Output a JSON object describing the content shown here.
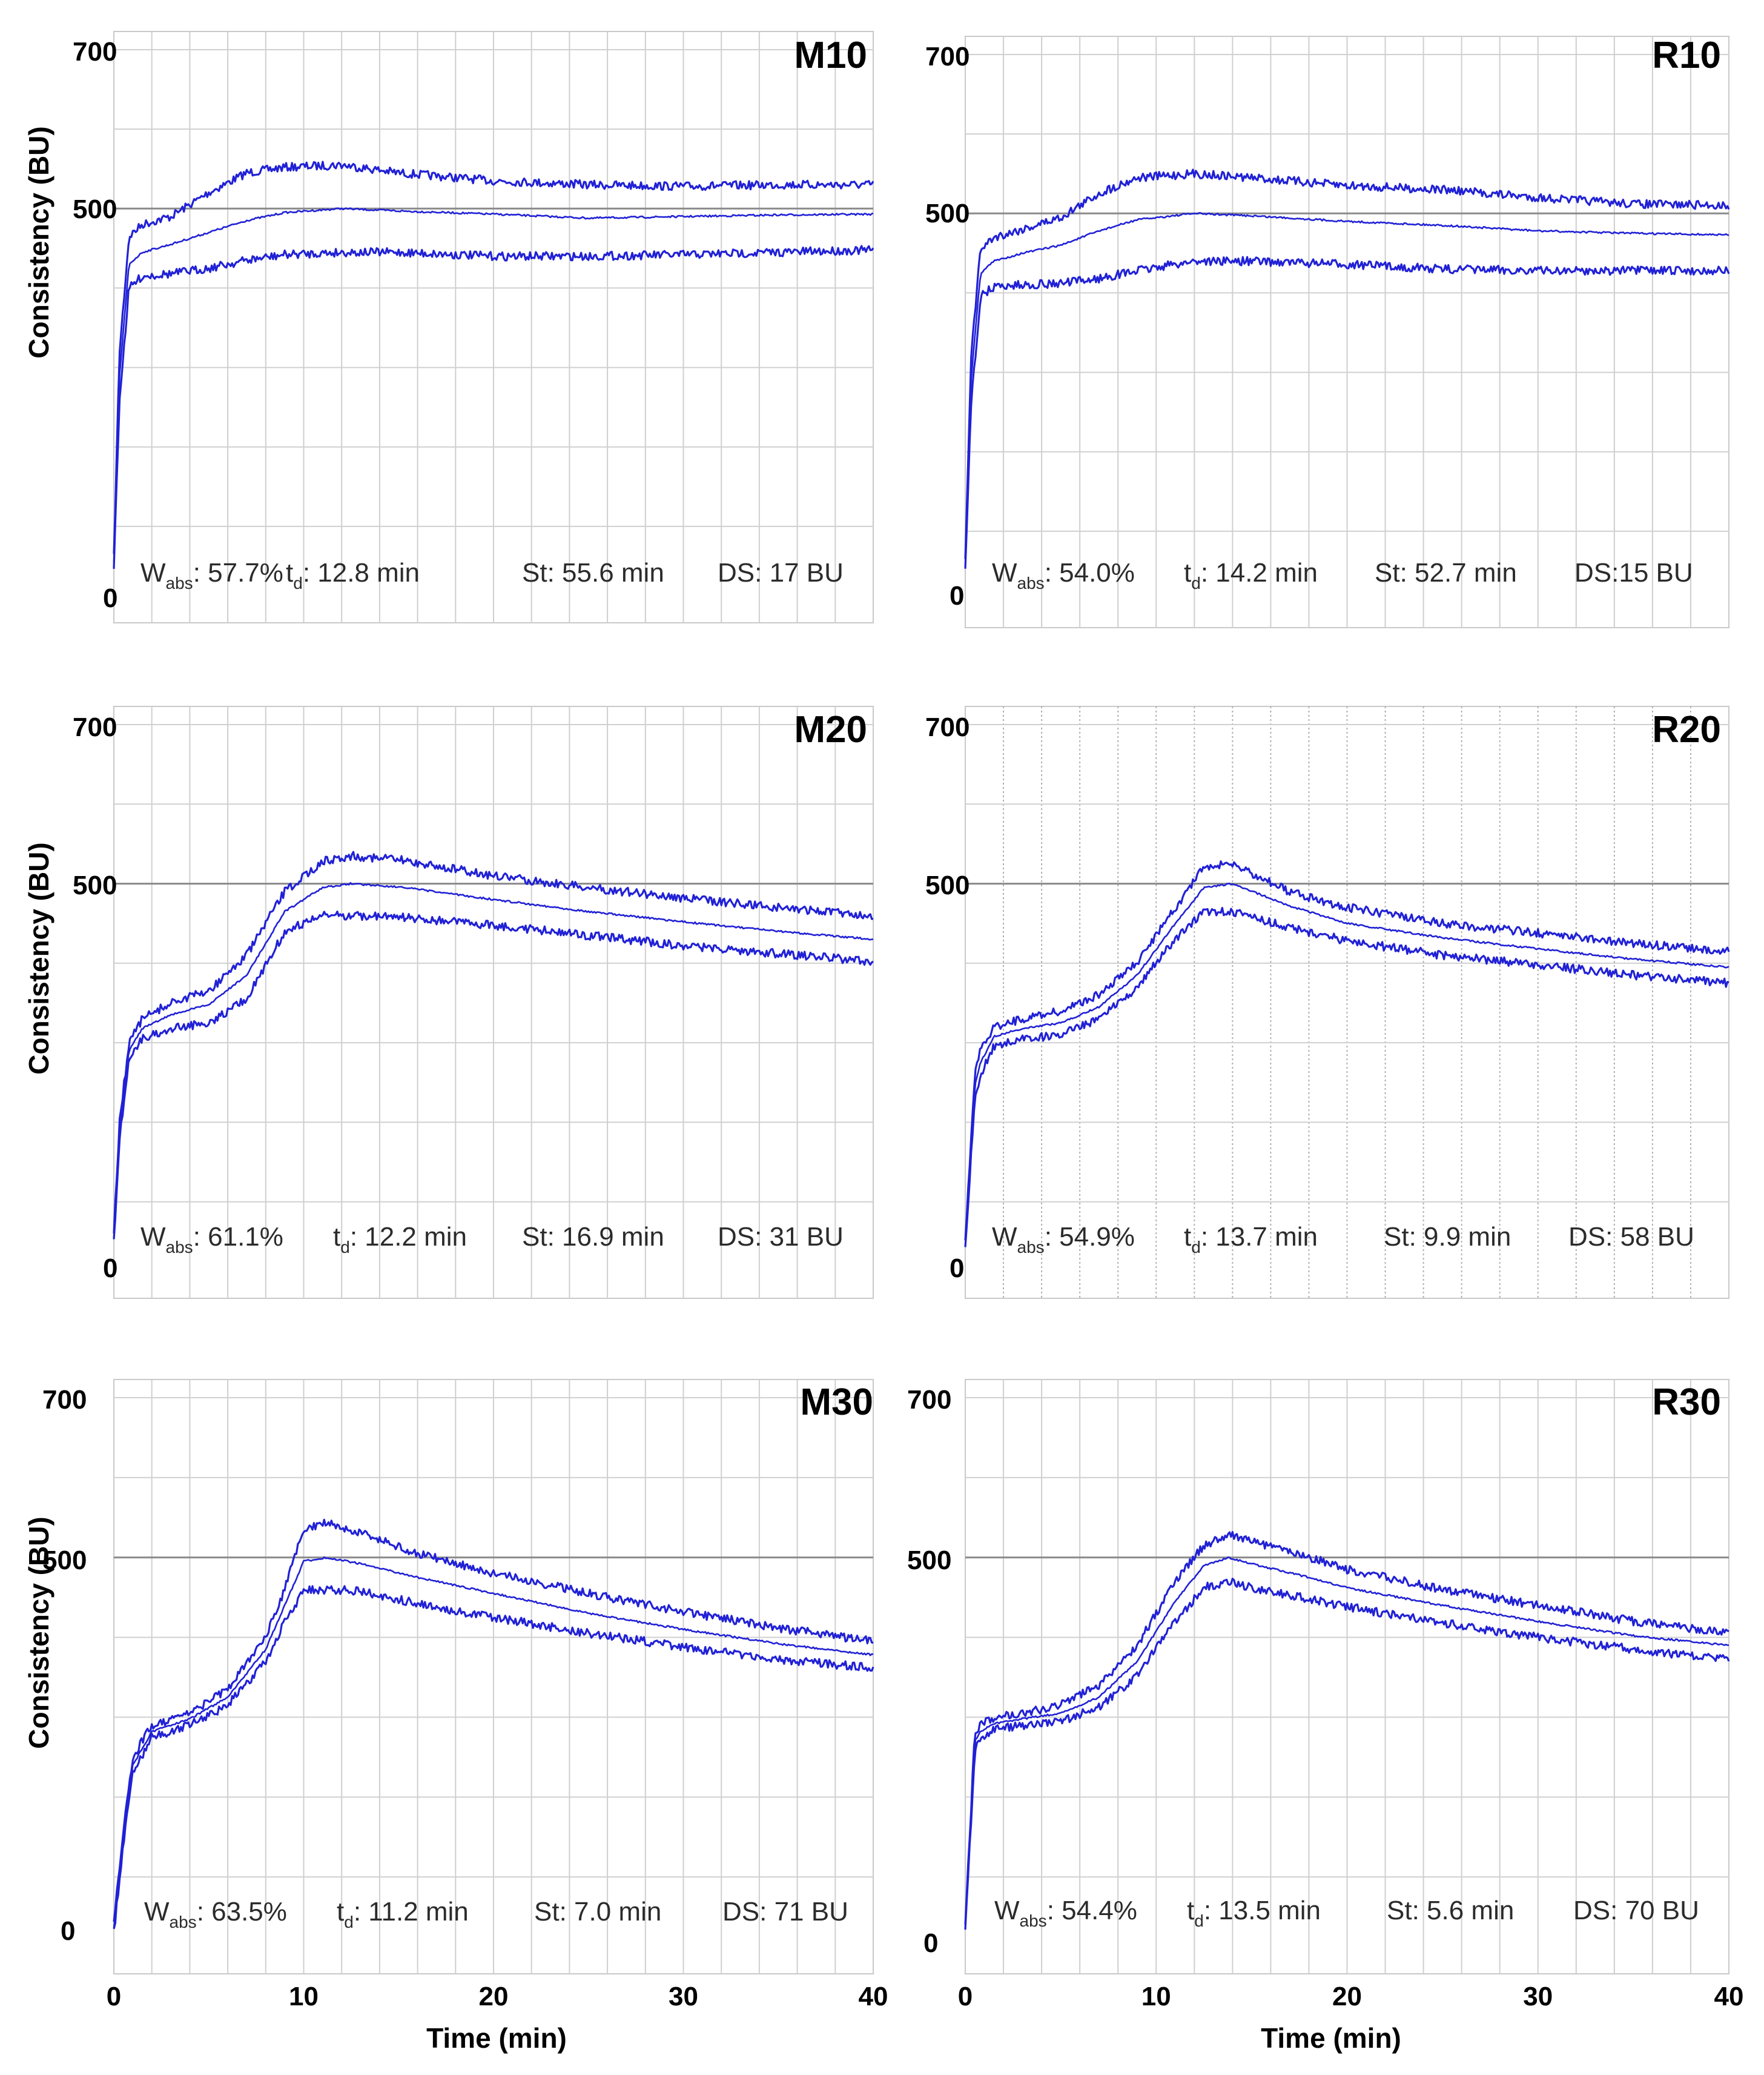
{
  "chart_data": [
    {
      "type": "line",
      "title": "M10",
      "ylabel": "Consistency (BU)",
      "xlabel": "",
      "xlim": [
        0,
        40
      ],
      "ylim": [
        0,
        700
      ],
      "y_ticks": [
        "700",
        "500",
        "0"
      ],
      "x_ticks": [],
      "stats": {
        "wabs": "57.7%",
        "td": "12.8 min",
        "st": "55.6 min",
        "ds": "17 BU"
      },
      "series": [
        {
          "name": "upper band",
          "x": [
            0,
            0.3,
            0.8,
            1.5,
            3,
            5,
            7,
            9,
            12,
            15,
            20,
            25,
            30,
            35,
            40
          ],
          "y": [
            60,
            320,
            465,
            480,
            490,
            520,
            545,
            552,
            555,
            545,
            535,
            530,
            528,
            530,
            530
          ]
        },
        {
          "name": "centre line",
          "x": [
            0,
            0.3,
            0.8,
            1.5,
            3,
            5,
            7,
            9,
            12,
            15,
            20,
            25,
            30,
            35,
            40
          ],
          "y": [
            55,
            290,
            430,
            445,
            455,
            470,
            485,
            495,
            500,
            497,
            493,
            488,
            490,
            492,
            493
          ]
        },
        {
          "name": "lower band",
          "x": [
            0,
            0.3,
            0.8,
            1.5,
            3,
            5,
            7,
            9,
            12,
            15,
            20,
            25,
            30,
            35,
            40
          ],
          "y": [
            50,
            260,
            400,
            415,
            418,
            425,
            435,
            442,
            445,
            445,
            440,
            440,
            442,
            445,
            448
          ]
        }
      ]
    },
    {
      "type": "line",
      "title": "R10",
      "ylabel": "",
      "xlabel": "",
      "xlim": [
        0,
        40
      ],
      "ylim": [
        0,
        700
      ],
      "y_ticks": [
        "700",
        "500",
        "0"
      ],
      "x_ticks": [],
      "stats": {
        "wabs": "54.0%",
        "td": "14.2 min",
        "st": "52.7 min",
        "ds": "15 BU"
      },
      "series": [
        {
          "name": "upper band",
          "x": [
            0,
            0.3,
            0.8,
            1.5,
            3,
            5,
            7,
            9,
            12,
            15,
            20,
            25,
            30,
            35,
            40
          ],
          "y": [
            60,
            320,
            455,
            470,
            480,
            495,
            525,
            545,
            550,
            545,
            535,
            530,
            520,
            512,
            510
          ]
        },
        {
          "name": "centre line",
          "x": [
            0,
            0.3,
            0.8,
            1.5,
            3,
            5,
            7,
            9,
            12,
            15,
            20,
            25,
            30,
            35,
            40
          ],
          "y": [
            55,
            290,
            425,
            440,
            450,
            460,
            478,
            492,
            500,
            497,
            490,
            485,
            478,
            475,
            473
          ]
        },
        {
          "name": "lower band",
          "x": [
            0,
            0.3,
            0.8,
            1.5,
            3,
            5,
            7,
            9,
            12,
            15,
            20,
            25,
            30,
            35,
            40
          ],
          "y": [
            50,
            260,
            395,
            408,
            410,
            412,
            418,
            428,
            440,
            440,
            436,
            430,
            428,
            428,
            428
          ]
        }
      ]
    },
    {
      "type": "line",
      "title": "M20",
      "ylabel": "Consistency (BU)",
      "xlabel": "",
      "xlim": [
        0,
        40
      ],
      "ylim": [
        0,
        700
      ],
      "y_ticks": [
        "700",
        "500",
        "0"
      ],
      "x_ticks": [],
      "stats": {
        "wabs": "61.1%",
        "td": "12.2 min",
        "st": "16.9 min",
        "ds": "31 BU"
      },
      "series": [
        {
          "name": "upper band",
          "x": [
            0,
            0.3,
            0.8,
            1.5,
            3,
            5,
            7,
            9,
            11,
            12.5,
            15,
            20,
            25,
            30,
            35,
            40
          ],
          "y": [
            60,
            200,
            300,
            330,
            350,
            365,
            410,
            490,
            528,
            535,
            530,
            510,
            495,
            482,
            470,
            460
          ]
        },
        {
          "name": "centre line",
          "x": [
            0,
            0.3,
            0.8,
            1.5,
            3,
            5,
            7,
            9,
            11,
            12.5,
            15,
            20,
            25,
            30,
            35,
            40
          ],
          "y": [
            55,
            190,
            290,
            318,
            335,
            348,
            385,
            465,
            495,
            500,
            496,
            480,
            465,
            452,
            440,
            430
          ]
        },
        {
          "name": "lower band",
          "x": [
            0,
            0.3,
            0.8,
            1.5,
            3,
            5,
            7,
            9,
            11,
            12.5,
            15,
            20,
            25,
            30,
            35,
            40
          ],
          "y": [
            50,
            180,
            280,
            305,
            318,
            325,
            355,
            440,
            460,
            460,
            458,
            448,
            435,
            422,
            412,
            402
          ]
        }
      ]
    },
    {
      "type": "line",
      "title": "R20",
      "ylabel": "",
      "xlabel": "",
      "xlim": [
        0,
        40
      ],
      "ylim": [
        0,
        700
      ],
      "y_ticks": [
        "700",
        "500",
        "0"
      ],
      "x_ticks": [],
      "stats": {
        "wabs": "54.9%",
        "td": "13.7 min",
        "st": "9.9 min",
        "ds": "58 BU"
      },
      "series": [
        {
          "name": "upper band",
          "x": [
            0,
            0.5,
            0.8,
            1.5,
            3,
            5,
            7,
            9,
            11,
            12.5,
            14,
            17,
            20,
            25,
            30,
            35,
            40
          ],
          "y": [
            50,
            260,
            290,
            320,
            330,
            340,
            360,
            400,
            470,
            520,
            525,
            490,
            470,
            450,
            438,
            425,
            415
          ]
        },
        {
          "name": "centre line",
          "x": [
            0,
            0.5,
            0.8,
            1.5,
            3,
            5,
            7,
            9,
            11,
            12.5,
            14,
            17,
            20,
            25,
            30,
            35,
            40
          ],
          "y": [
            45,
            245,
            275,
            308,
            318,
            325,
            345,
            385,
            450,
            495,
            500,
            472,
            450,
            432,
            418,
            405,
            395
          ]
        },
        {
          "name": "lower band",
          "x": [
            0,
            0.5,
            0.8,
            1.5,
            3,
            5,
            7,
            9,
            11,
            12.5,
            14,
            17,
            20,
            25,
            30,
            35,
            40
          ],
          "y": [
            40,
            230,
            260,
            295,
            305,
            310,
            330,
            370,
            430,
            465,
            465,
            445,
            428,
            410,
            398,
            385,
            375
          ]
        }
      ]
    },
    {
      "type": "line",
      "title": "M30",
      "ylabel": "Consistency (BU)",
      "xlabel": "Time (min)",
      "xlim": [
        0,
        40
      ],
      "ylim": [
        0,
        700
      ],
      "y_ticks": [
        "700",
        "500",
        "0"
      ],
      "x_ticks": [
        "0",
        "10",
        "20",
        "30",
        "40"
      ],
      "stats": {
        "wabs": "63.5%",
        "td": "11.2 min",
        "st": "7.0 min",
        "ds": "71 BU"
      },
      "series": [
        {
          "name": "upper band",
          "x": [
            0,
            0.5,
            1,
            2,
            4,
            6,
            8,
            9,
            10,
            11.2,
            13,
            16,
            20,
            25,
            30,
            35,
            40
          ],
          "y": [
            40,
            160,
            250,
            290,
            305,
            335,
            400,
            460,
            535,
            545,
            530,
            505,
            480,
            455,
            432,
            412,
            395
          ]
        },
        {
          "name": "centre line",
          "x": [
            0,
            0.5,
            1,
            2,
            4,
            6,
            8,
            9,
            10,
            11.2,
            13,
            16,
            20,
            25,
            30,
            35,
            40
          ],
          "y": [
            35,
            150,
            240,
            282,
            298,
            325,
            385,
            440,
            495,
            500,
            492,
            475,
            455,
            430,
            410,
            392,
            378
          ]
        },
        {
          "name": "lower band",
          "x": [
            0,
            0.5,
            1,
            2,
            4,
            6,
            8,
            9,
            10,
            11.2,
            13,
            16,
            20,
            25,
            30,
            35,
            40
          ],
          "y": [
            30,
            140,
            230,
            275,
            290,
            315,
            370,
            420,
            458,
            460,
            458,
            442,
            425,
            405,
            388,
            372,
            362
          ]
        }
      ]
    },
    {
      "type": "line",
      "title": "R30",
      "ylabel": "",
      "xlabel": "Time (min)",
      "xlim": [
        0,
        40
      ],
      "ylim": [
        0,
        700
      ],
      "y_ticks": [
        "700",
        "500",
        "0"
      ],
      "x_ticks": [
        "0",
        "10",
        "20",
        "30",
        "40"
      ],
      "stats": {
        "wabs": "54.4%",
        "td": "13.5 min",
        "st": "5.6 min",
        "ds": "70 BU"
      },
      "series": [
        {
          "name": "upper band",
          "x": [
            0,
            0.5,
            0.8,
            1.5,
            3,
            5,
            7,
            9,
            11,
            12.5,
            13.8,
            15,
            18,
            20,
            25,
            30,
            35,
            40
          ],
          "y": [
            40,
            280,
            290,
            300,
            305,
            315,
            340,
            390,
            470,
            515,
            528,
            520,
            500,
            485,
            460,
            440,
            420,
            405
          ]
        },
        {
          "name": "centre line",
          "x": [
            0,
            0.5,
            0.8,
            1.5,
            3,
            5,
            7,
            9,
            11,
            12.5,
            13.8,
            15,
            18,
            20,
            25,
            30,
            35,
            40
          ],
          "y": [
            35,
            270,
            282,
            292,
            298,
            305,
            325,
            370,
            445,
            490,
            500,
            492,
            475,
            462,
            440,
            420,
            402,
            390
          ]
        },
        {
          "name": "lower band",
          "x": [
            0,
            0.5,
            0.8,
            1.5,
            3,
            5,
            7,
            9,
            11,
            12.5,
            13.8,
            15,
            18,
            20,
            25,
            30,
            35,
            40
          ],
          "y": [
            30,
            260,
            275,
            285,
            290,
            295,
            312,
            352,
            420,
            462,
            470,
            462,
            448,
            438,
            418,
            400,
            385,
            372
          ]
        }
      ]
    }
  ]
}
